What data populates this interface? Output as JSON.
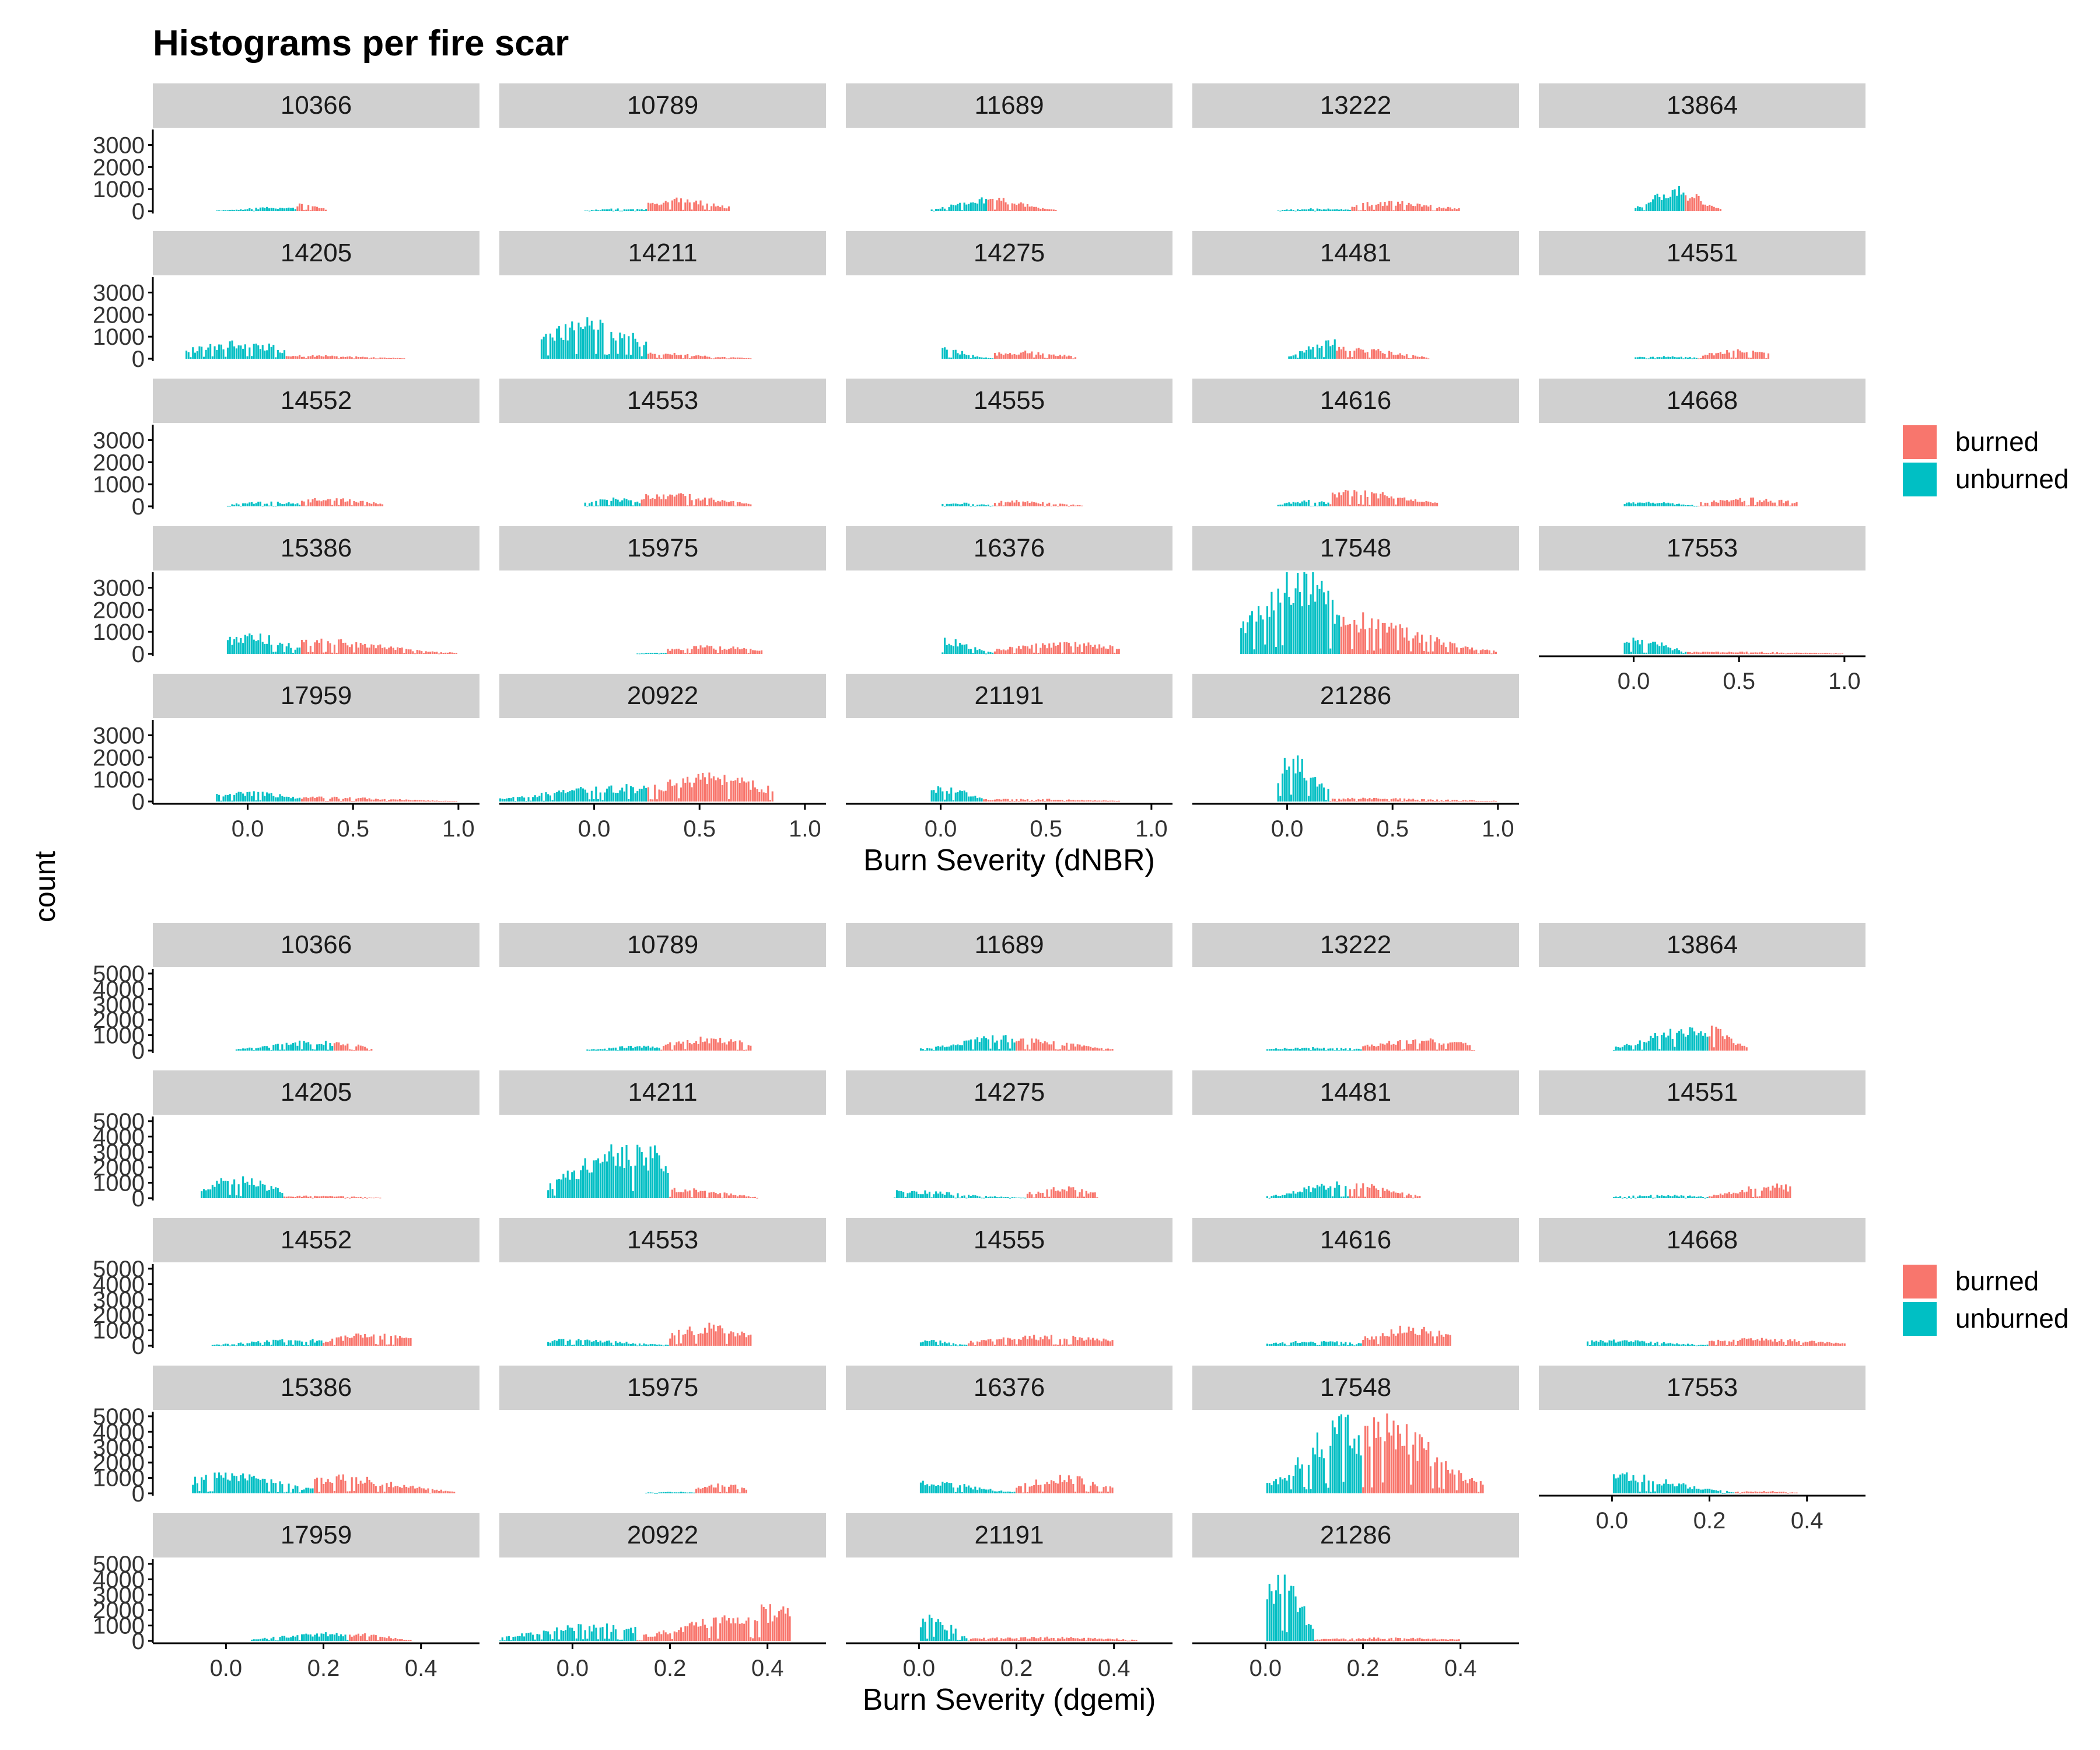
{
  "title": "Histograms per fire scar",
  "yaxis_label": "count",
  "colors": {
    "burned": "#F8766D",
    "unburned": "#00BFC4",
    "strip": "#D0D0D0",
    "axis": "#000000"
  },
  "chart_data": [
    {
      "type": "histogram",
      "xlabel": "Burn Severity (dNBR)",
      "xlim": [
        -0.45,
        1.1
      ],
      "x_ticks": [
        0.0,
        0.5,
        1.0
      ],
      "x_tick_labels": [
        "0.0",
        "0.5",
        "1.0"
      ],
      "ylim": [
        0,
        3700
      ],
      "y_ticks": [
        0,
        1000,
        2000,
        3000
      ],
      "y_tick_labels": [
        "0",
        "1000",
        "2000",
        "3000"
      ],
      "legend": {
        "position": "right",
        "entries": [
          "burned",
          "unburned"
        ]
      },
      "panels": [
        {
          "id": "10366",
          "lo": -0.15,
          "mid": 0.23,
          "hi": 0.38,
          "u_peak": 180,
          "b_peak": 380,
          "u_mode": 0.15,
          "b_mode": 0.27
        },
        {
          "id": "10789",
          "lo": -0.05,
          "mid": 0.25,
          "hi": 0.65,
          "u_peak": 120,
          "b_peak": 550,
          "u_mode": 0.15,
          "b_mode": 0.4
        },
        {
          "id": "11689",
          "lo": -0.05,
          "mid": 0.22,
          "hi": 0.55,
          "u_peak": 550,
          "b_peak": 550,
          "u_mode": 0.18,
          "b_mode": 0.26
        },
        {
          "id": "13222",
          "lo": -0.05,
          "mid": 0.3,
          "hi": 0.82,
          "u_peak": 120,
          "b_peak": 420,
          "u_mode": 0.15,
          "b_mode": 0.48
        },
        {
          "id": "13864",
          "lo": 0.0,
          "mid": 0.24,
          "hi": 0.42,
          "u_peak": 1050,
          "b_peak": 720,
          "u_mode": 0.2,
          "b_mode": 0.27
        },
        {
          "id": "14205",
          "lo": -0.3,
          "mid": 0.18,
          "hi": 0.75,
          "u_peak": 800,
          "b_peak": 150,
          "u_mode": -0.05,
          "b_mode": 0.3
        },
        {
          "id": "14211",
          "lo": -0.25,
          "mid": 0.25,
          "hi": 0.75,
          "u_peak": 1700,
          "b_peak": 280,
          "u_mode": -0.02,
          "b_mode": 0.3
        },
        {
          "id": "14275",
          "lo": 0.0,
          "mid": 0.25,
          "hi": 0.65,
          "u_peak": 500,
          "b_peak": 330,
          "u_mode": 0.0,
          "b_mode": 0.4
        },
        {
          "id": "14481",
          "lo": 0.0,
          "mid": 0.23,
          "hi": 0.68,
          "u_peak": 850,
          "b_peak": 500,
          "u_mode": 0.2,
          "b_mode": 0.3
        },
        {
          "id": "14551",
          "lo": 0.0,
          "mid": 0.3,
          "hi": 0.65,
          "u_peak": 120,
          "b_peak": 380,
          "u_mode": 0.15,
          "b_mode": 0.5
        },
        {
          "id": "14552",
          "lo": -0.1,
          "mid": 0.25,
          "hi": 0.65,
          "u_peak": 200,
          "b_peak": 380,
          "u_mode": 0.1,
          "b_mode": 0.4
        },
        {
          "id": "14553",
          "lo": -0.05,
          "mid": 0.22,
          "hi": 0.75,
          "u_peak": 350,
          "b_peak": 550,
          "u_mode": 0.1,
          "b_mode": 0.35
        },
        {
          "id": "14555",
          "lo": 0.0,
          "mid": 0.25,
          "hi": 0.68,
          "u_peak": 150,
          "b_peak": 250,
          "u_mode": 0.1,
          "b_mode": 0.35
        },
        {
          "id": "14616",
          "lo": -0.05,
          "mid": 0.2,
          "hi": 0.72,
          "u_peak": 250,
          "b_peak": 700,
          "u_mode": 0.1,
          "b_mode": 0.33
        },
        {
          "id": "14668",
          "lo": -0.05,
          "mid": 0.3,
          "hi": 0.78,
          "u_peak": 200,
          "b_peak": 350,
          "u_mode": 0.05,
          "b_mode": 0.55
        },
        {
          "id": "15386",
          "lo": -0.1,
          "mid": 0.25,
          "hi": 1.0,
          "u_peak": 900,
          "b_peak": 650,
          "u_mode": 0.02,
          "b_mode": 0.3
        },
        {
          "id": "15975",
          "lo": 0.2,
          "mid": 0.35,
          "hi": 0.8,
          "u_peak": 50,
          "b_peak": 350,
          "u_mode": 0.3,
          "b_mode": 0.55
        },
        {
          "id": "16376",
          "lo": 0.0,
          "mid": 0.25,
          "hi": 0.85,
          "u_peak": 700,
          "b_peak": 500,
          "u_mode": 0.02,
          "b_mode": 0.6
        },
        {
          "id": "17548",
          "lo": -0.22,
          "mid": 0.25,
          "hi": 1.0,
          "u_peak": 3600,
          "b_peak": 1700,
          "u_mode": 0.05,
          "b_mode": 0.28
        },
        {
          "id": "17553",
          "lo": -0.05,
          "mid": 0.25,
          "hi": 1.0,
          "u_peak": 700,
          "b_peak": 100,
          "u_mode": 0.02,
          "b_mode": 0.45
        },
        {
          "id": "17959",
          "lo": -0.15,
          "mid": 0.25,
          "hi": 1.0,
          "u_peak": 450,
          "b_peak": 200,
          "u_mode": 0.0,
          "b_mode": 0.35
        },
        {
          "id": "20922",
          "lo": -0.45,
          "mid": 0.25,
          "hi": 0.85,
          "u_peak": 700,
          "b_peak": 1150,
          "u_mode": 0.1,
          "b_mode": 0.55
        },
        {
          "id": "21191",
          "lo": -0.05,
          "mid": 0.2,
          "hi": 0.85,
          "u_peak": 650,
          "b_peak": 120,
          "u_mode": 0.02,
          "b_mode": 0.4
        },
        {
          "id": "21286",
          "lo": -0.05,
          "mid": 0.2,
          "hi": 1.0,
          "u_peak": 1900,
          "b_peak": 150,
          "u_mode": 0.03,
          "b_mode": 0.4
        }
      ]
    },
    {
      "type": "histogram",
      "xlabel": "Burn Severity (dgemi)",
      "xlim": [
        -0.15,
        0.52
      ],
      "x_ticks": [
        0.0,
        0.2,
        0.4
      ],
      "x_tick_labels": [
        "0.0",
        "0.2",
        "0.4"
      ],
      "ylim": [
        0,
        5300
      ],
      "y_ticks": [
        0,
        1000,
        2000,
        3000,
        4000,
        5000
      ],
      "y_tick_labels": [
        "0",
        "1000",
        "2000",
        "3000",
        "4000",
        "5000"
      ],
      "legend": {
        "position": "right",
        "entries": [
          "burned",
          "unburned"
        ]
      },
      "panels": [
        {
          "id": "10366",
          "lo": 0.02,
          "mid": 0.22,
          "hi": 0.3,
          "u_peak": 600,
          "b_peak": 550,
          "u_mode": 0.18,
          "b_mode": 0.24
        },
        {
          "id": "10789",
          "lo": 0.03,
          "mid": 0.18,
          "hi": 0.37,
          "u_peak": 300,
          "b_peak": 800,
          "u_mode": 0.14,
          "b_mode": 0.28
        },
        {
          "id": "11689",
          "lo": 0.0,
          "mid": 0.2,
          "hi": 0.4,
          "u_peak": 900,
          "b_peak": 700,
          "u_mode": 0.17,
          "b_mode": 0.23
        },
        {
          "id": "13222",
          "lo": 0.0,
          "mid": 0.2,
          "hi": 0.43,
          "u_peak": 200,
          "b_peak": 700,
          "u_mode": 0.1,
          "b_mode": 0.32
        },
        {
          "id": "13864",
          "lo": 0.0,
          "mid": 0.2,
          "hi": 0.28,
          "u_peak": 1600,
          "b_peak": 1500,
          "u_mode": 0.17,
          "b_mode": 0.21
        },
        {
          "id": "14205",
          "lo": -0.05,
          "mid": 0.12,
          "hi": 0.32,
          "u_peak": 1300,
          "b_peak": 150,
          "u_mode": 0.02,
          "b_mode": 0.18
        },
        {
          "id": "14211",
          "lo": -0.05,
          "mid": 0.2,
          "hi": 0.38,
          "u_peak": 3400,
          "b_peak": 600,
          "u_mode": 0.12,
          "b_mode": 0.23
        },
        {
          "id": "14275",
          "lo": -0.05,
          "mid": 0.22,
          "hi": 0.37,
          "u_peak": 500,
          "b_peak": 700,
          "u_mode": -0.04,
          "b_mode": 0.3
        },
        {
          "id": "14481",
          "lo": 0.0,
          "mid": 0.17,
          "hi": 0.32,
          "u_peak": 1000,
          "b_peak": 900,
          "u_mode": 0.15,
          "b_mode": 0.2
        },
        {
          "id": "14551",
          "lo": 0.0,
          "mid": 0.2,
          "hi": 0.37,
          "u_peak": 200,
          "b_peak": 850,
          "u_mode": 0.1,
          "b_mode": 0.33
        },
        {
          "id": "14552",
          "lo": -0.03,
          "mid": 0.2,
          "hi": 0.38,
          "u_peak": 400,
          "b_peak": 750,
          "u_mode": 0.15,
          "b_mode": 0.3
        },
        {
          "id": "14553",
          "lo": -0.05,
          "mid": 0.2,
          "hi": 0.37,
          "u_peak": 400,
          "b_peak": 1300,
          "u_mode": 0.0,
          "b_mode": 0.28
        },
        {
          "id": "14555",
          "lo": 0.0,
          "mid": 0.1,
          "hi": 0.4,
          "u_peak": 350,
          "b_peak": 650,
          "u_mode": 0.02,
          "b_mode": 0.27
        },
        {
          "id": "14616",
          "lo": 0.0,
          "mid": 0.2,
          "hi": 0.38,
          "u_peak": 300,
          "b_peak": 1200,
          "u_mode": 0.1,
          "b_mode": 0.3
        },
        {
          "id": "14668",
          "lo": -0.05,
          "mid": 0.2,
          "hi": 0.48,
          "u_peak": 350,
          "b_peak": 450,
          "u_mode": 0.0,
          "b_mode": 0.3
        },
        {
          "id": "15386",
          "lo": -0.07,
          "mid": 0.18,
          "hi": 0.47,
          "u_peak": 1200,
          "b_peak": 1100,
          "u_mode": 0.0,
          "b_mode": 0.22
        },
        {
          "id": "15975",
          "lo": 0.15,
          "mid": 0.25,
          "hi": 0.36,
          "u_peak": 100,
          "b_peak": 650,
          "u_mode": 0.2,
          "b_mode": 0.3
        },
        {
          "id": "16376",
          "lo": 0.0,
          "mid": 0.2,
          "hi": 0.4,
          "u_peak": 800,
          "b_peak": 1100,
          "u_mode": 0.02,
          "b_mode": 0.3
        },
        {
          "id": "17548",
          "lo": 0.0,
          "mid": 0.2,
          "hi": 0.45,
          "u_peak": 4600,
          "b_peak": 4600,
          "u_mode": 0.17,
          "b_mode": 0.24
        },
        {
          "id": "17553",
          "lo": 0.0,
          "mid": 0.25,
          "hi": 0.38,
          "u_peak": 1200,
          "b_peak": 150,
          "u_mode": 0.02,
          "b_mode": 0.3
        },
        {
          "id": "17959",
          "lo": 0.05,
          "mid": 0.25,
          "hi": 0.38,
          "u_peak": 500,
          "b_peak": 450,
          "u_mode": 0.2,
          "b_mode": 0.28
        },
        {
          "id": "20922",
          "lo": -0.15,
          "mid": 0.13,
          "hi": 0.45,
          "u_peak": 1000,
          "b_peak": 2100,
          "u_mode": 0.05,
          "b_mode": 0.4
        },
        {
          "id": "21191",
          "lo": 0.0,
          "mid": 0.1,
          "hi": 0.45,
          "u_peak": 1700,
          "b_peak": 250,
          "u_mode": 0.02,
          "b_mode": 0.25
        },
        {
          "id": "21286",
          "lo": 0.0,
          "mid": 0.1,
          "hi": 0.4,
          "u_peak": 4200,
          "b_peak": 200,
          "u_mode": 0.03,
          "b_mode": 0.25
        }
      ]
    }
  ]
}
